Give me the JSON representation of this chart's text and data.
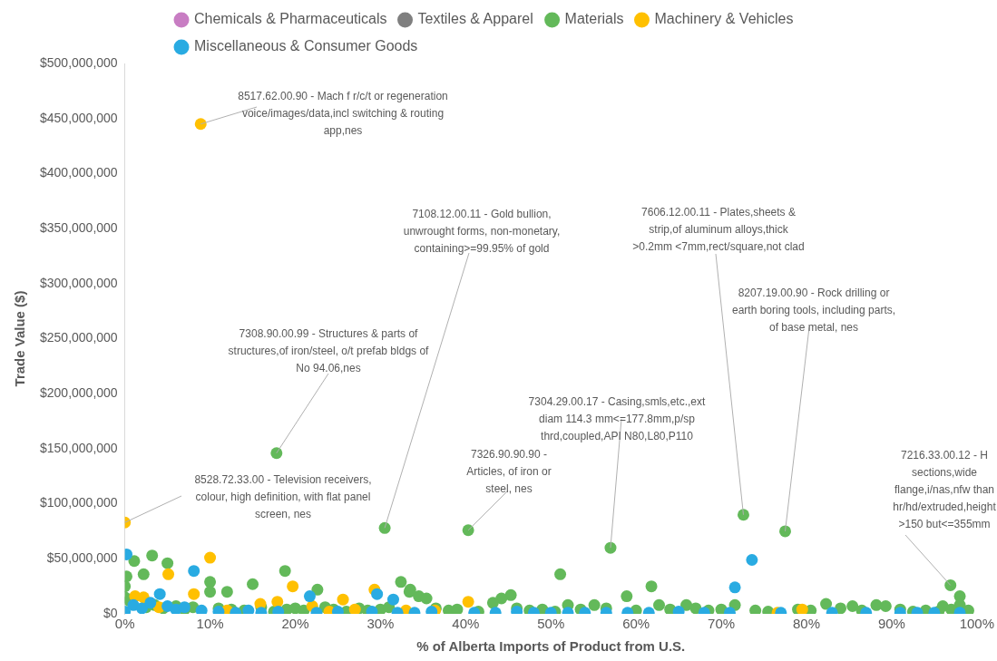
{
  "chart_data": {
    "type": "scatter",
    "xlabel": "% of Alberta Imports of Product from U.S.",
    "ylabel": "Trade Value ($)",
    "xlim": [
      0,
      100
    ],
    "ylim": [
      0,
      500000000
    ],
    "xticks": [
      {
        "value": 0,
        "label": "0%"
      },
      {
        "value": 10,
        "label": "10%"
      },
      {
        "value": 20,
        "label": "20%"
      },
      {
        "value": 30,
        "label": "30%"
      },
      {
        "value": 40,
        "label": "40%"
      },
      {
        "value": 50,
        "label": "50%"
      },
      {
        "value": 60,
        "label": "60%"
      },
      {
        "value": 70,
        "label": "70%"
      },
      {
        "value": 80,
        "label": "80%"
      },
      {
        "value": 90,
        "label": "90%"
      },
      {
        "value": 100,
        "label": "100%"
      }
    ],
    "yticks": [
      {
        "value": 0,
        "label": "$0"
      },
      {
        "value": 50000000,
        "label": "$50,000,000"
      },
      {
        "value": 100000000,
        "label": "$100,000,000"
      },
      {
        "value": 150000000,
        "label": "$150,000,000"
      },
      {
        "value": 200000000,
        "label": "$200,000,000"
      },
      {
        "value": 250000000,
        "label": "$250,000,000"
      },
      {
        "value": 300000000,
        "label": "$300,000,000"
      },
      {
        "value": 350000000,
        "label": "$350,000,000"
      },
      {
        "value": 400000000,
        "label": "$400,000,000"
      },
      {
        "value": 450000000,
        "label": "$450,000,000"
      },
      {
        "value": 500000000,
        "label": "$500,000,000"
      }
    ],
    "grid": false,
    "legend": "top",
    "marker": "circle",
    "series": [
      {
        "name": "Chemicals & Pharmaceuticals",
        "color": "#c87dc3"
      },
      {
        "name": "Textiles & Apparel",
        "color": "#7f7f7f"
      },
      {
        "name": "Materials",
        "color": "#63b95a",
        "x": [
          17.8,
          30.5,
          40.3,
          57,
          72.6,
          77.5,
          96.9,
          1.1,
          3.2,
          2.2,
          5,
          0.2,
          0,
          10,
          10,
          12,
          15,
          18.8,
          22.6,
          32.4,
          33.4,
          51.1,
          61.8,
          58.9,
          45.3,
          44.2,
          43.2,
          34.5,
          35.4,
          33.5,
          98,
          55.1,
          52,
          62.7,
          65.9,
          71.6,
          82.3,
          85.4,
          88.2,
          89.3,
          96,
          98,
          0,
          0.5,
          2.5,
          3.5,
          4.5,
          6,
          7,
          8,
          9,
          11,
          12.5,
          14,
          16,
          17.5,
          19,
          20,
          21,
          23.5,
          24.5,
          26,
          27.5,
          28.5,
          30,
          31,
          36.5,
          38,
          39,
          41.5,
          46,
          47.5,
          49,
          50.5,
          53.5,
          56.5,
          60,
          64,
          67,
          68.5,
          70,
          74,
          75.5,
          79,
          80.5,
          84,
          86.5,
          91,
          92.5,
          94,
          95.5,
          97,
          99
        ],
        "values": [
          146000000,
          78000000,
          76000000,
          60000000,
          90000000,
          75000000,
          26000000,
          48000000,
          53000000,
          36000000,
          46000000,
          34000000,
          25000000,
          29000000,
          20000000,
          20000000,
          27000000,
          39000000,
          22000000,
          29000000,
          20000000,
          36000000,
          25000000,
          16000000,
          17000000,
          14000000,
          10000000,
          16000000,
          14000000,
          22000000,
          16000000,
          8000000,
          8000000,
          8000000,
          8000000,
          8000000,
          9000000,
          7000000,
          8000000,
          7000000,
          7000000,
          8000000,
          15000000,
          12000000,
          6000000,
          8000000,
          5000000,
          7000000,
          4000000,
          6000000,
          null,
          5000000,
          4000000,
          3000000,
          6000000,
          2000000,
          4000000,
          5000000,
          3000000,
          6000000,
          4000000,
          2000000,
          5000000,
          3000000,
          4000000,
          6000000,
          5000000,
          3000000,
          4000000,
          2000000,
          5000000,
          3000000,
          4000000,
          2000000,
          4000000,
          5000000,
          3000000,
          4000000,
          5000000,
          3000000,
          4000000,
          3000000,
          2000000,
          4000000,
          3000000,
          5000000,
          3000000,
          4000000,
          2000000,
          3000000,
          2000000,
          4000000,
          3000000
        ]
      },
      {
        "name": "Machinery & Vehicles",
        "color": "#ffc000",
        "x": [
          8.9,
          0,
          10,
          5.1,
          8.1,
          19.7,
          25.6,
          29.3,
          1.2,
          2.2,
          15.9,
          17.9,
          40.3,
          36.4,
          76.6,
          79.5,
          4,
          6.5,
          12,
          22,
          24,
          27,
          33
        ],
        "values": [
          445000000,
          83000000,
          51000000,
          36000000,
          18000000,
          25000000,
          13000000,
          22000000,
          16000000,
          15000000,
          9000000,
          11000000,
          11000000,
          3000000,
          1000000,
          4000000,
          6000000,
          null,
          3000000,
          7000000,
          2000000,
          4000000,
          3000000
        ]
      },
      {
        "name": "Miscellaneous & Consumer Goods",
        "color": "#29abe2",
        "x": [
          0.2,
          8.1,
          73.6,
          71.6,
          4.1,
          21.7,
          29.6,
          31.5,
          0,
          1,
          2,
          3,
          5,
          6,
          7,
          9,
          11,
          13,
          14.5,
          16,
          18,
          22.5,
          25,
          29,
          32,
          34,
          36,
          41,
          43.5,
          46,
          48,
          50,
          52,
          54,
          56.5,
          59,
          61.5,
          65,
          68,
          71,
          77,
          83,
          87,
          91,
          93,
          95,
          98
        ],
        "values": [
          54000000,
          39000000,
          49000000,
          24000000,
          18000000,
          16000000,
          18000000,
          13000000,
          2000000,
          8000000,
          5000000,
          10000000,
          7000000,
          4000000,
          6000000,
          3000000,
          2000000,
          1000000,
          3000000,
          1000000,
          2000000,
          1000000,
          2000000,
          2000000,
          1000000,
          1000000,
          2000000,
          1000000,
          1000000,
          2000000,
          1000000,
          1000000,
          1000000,
          1000000,
          1000000,
          1000000,
          1000000,
          2000000,
          1000000,
          1000000,
          1000000,
          1000000,
          1000000,
          1000000,
          1000000,
          1000000,
          1000000
        ]
      }
    ],
    "annotations": [
      {
        "text": "8517.62.00.90 - Mach f r/c/t or regeneration voice/images/data,incl switching & routing app,nes",
        "x": 8.9,
        "y": 445000000
      },
      {
        "text": "8528.72.33.00 - Television receivers, colour, high definition, with flat panel screen, nes",
        "x": 0,
        "y": 83000000
      },
      {
        "text": "7308.90.00.99 - Structures & parts of structures,of iron/steel, o/t prefab bldgs of No 94.06,nes",
        "x": 17.8,
        "y": 146000000
      },
      {
        "text": "7108.12.00.11 - Gold bullion, unwrought forms, non-monetary, containing>=99.95% of gold",
        "x": 30.5,
        "y": 78000000
      },
      {
        "text": "7326.90.90.90 - Articles, of iron or steel, nes",
        "x": 40.3,
        "y": 76000000
      },
      {
        "text": "7304.29.00.17 - Casing,smls,etc.,ext diam 114.3 mm<=177.8mm,p/sp thrd,coupled,API N80,L80,P110",
        "x": 57,
        "y": 60000000
      },
      {
        "text": "7606.12.00.11 - Plates,sheets & strip,of aluminum alloys,thick >0.2mm <7mm,rect/square,not clad",
        "x": 72.6,
        "y": 90000000
      },
      {
        "text": "8207.19.00.90 - Rock drilling or earth boring tools, including parts, of base metal, nes",
        "x": 77.5,
        "y": 75000000
      },
      {
        "text": "7216.33.00.12 - H sections,wide flange,i/nas,nfw than hr/hd/extruded,height >150 but<=355mm",
        "x": 96.9,
        "y": 26000000
      }
    ]
  }
}
